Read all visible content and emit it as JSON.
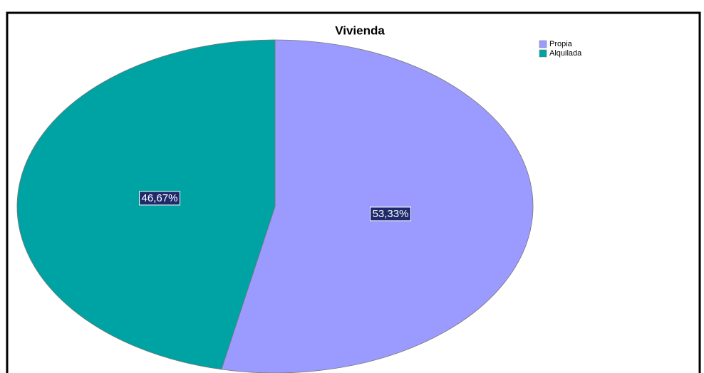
{
  "chart_data": {
    "type": "pie",
    "title": "Vivienda",
    "categories": [
      "Propia",
      "Alquilada"
    ],
    "values": [
      53.33,
      46.67
    ],
    "value_labels": [
      "53,33%",
      "46,67%"
    ],
    "colors": [
      "#9b9bff",
      "#00a3a3"
    ],
    "legend": "top-right"
  }
}
